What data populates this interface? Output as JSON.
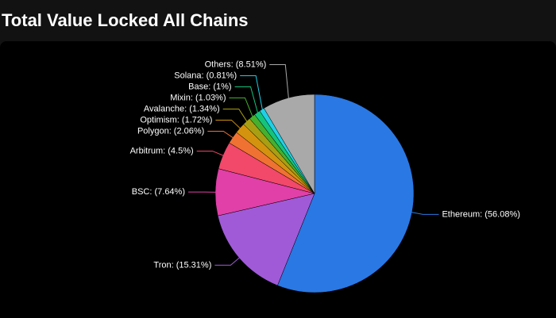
{
  "chart_data": {
    "type": "pie",
    "title": "Total Value Locked All Chains",
    "values": [
      56.08,
      15.31,
      7.64,
      4.5,
      2.06,
      1.72,
      1.34,
      1.03,
      1,
      0.81,
      8.51
    ],
    "value_labels": [
      "Ethereum: (56.08%)",
      "Tron: (15.31%)",
      "BSC: (7.64%)",
      "Arbitrum: (4.5%)",
      "Polygon: (2.06%)",
      "Optimism: (1.72%)",
      "Avalanche: (1.34%)",
      "Mixin: (1.03%)",
      "Base: (1%)",
      "Solana: (0.81%)",
      "Others: (8.51%)"
    ],
    "colors": [
      "#2a78e4",
      "#a05ad8",
      "#e040a8",
      "#f2486a",
      "#f07232",
      "#d4930e",
      "#a8a012",
      "#46b02e",
      "#14c47c",
      "#1fd0e6",
      "#a9a9a9"
    ]
  }
}
